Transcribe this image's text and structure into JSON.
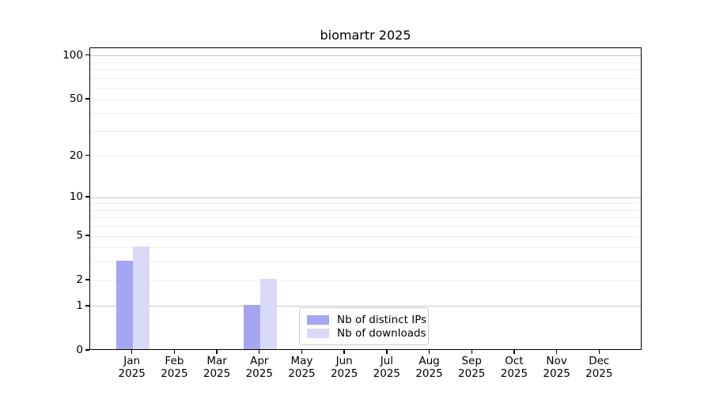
{
  "title": "biomartr 2025",
  "colors": {
    "bar_distinct_ips": "#a5a5f2",
    "bar_downloads": "#d9daf8",
    "grid_major": "#c8c8c8",
    "grid_minor": "#eeeeee",
    "axis": "#000000",
    "legend_border": "#cccccc",
    "background": "#ffffff"
  },
  "legend": {
    "position": "bottom-center"
  },
  "chart_data": {
    "type": "bar",
    "title": "biomartr 2025",
    "categories": [
      "Jan",
      "Feb",
      "Mar",
      "Apr",
      "May",
      "Jun",
      "Jul",
      "Aug",
      "Sep",
      "Oct",
      "Nov",
      "Dec"
    ],
    "category_year": "2025",
    "series": [
      {
        "name": "Nb of distinct IPs",
        "color": "#a5a5f2",
        "values": [
          3,
          0,
          0,
          1,
          0,
          0,
          0,
          0,
          0,
          0,
          0,
          0
        ]
      },
      {
        "name": "Nb of downloads",
        "color": "#d9daf8",
        "values": [
          4,
          0,
          0,
          2,
          0,
          0,
          0,
          0,
          0,
          0,
          0,
          0
        ]
      }
    ],
    "xlabel": "",
    "ylabel": "",
    "yscale": "log1p",
    "ylim": [
      0,
      113
    ],
    "ytick_values": [
      0,
      1,
      2,
      5,
      10,
      20,
      50,
      100
    ],
    "grid_major_values": [
      1,
      10,
      100
    ],
    "grid_minor_values": [
      2,
      3,
      4,
      5,
      6,
      7,
      8,
      9,
      20,
      30,
      40,
      50,
      60,
      70,
      80,
      90
    ],
    "grid": "horizontal",
    "legend_entries": [
      "Nb of distinct IPs",
      "Nb of downloads"
    ]
  }
}
